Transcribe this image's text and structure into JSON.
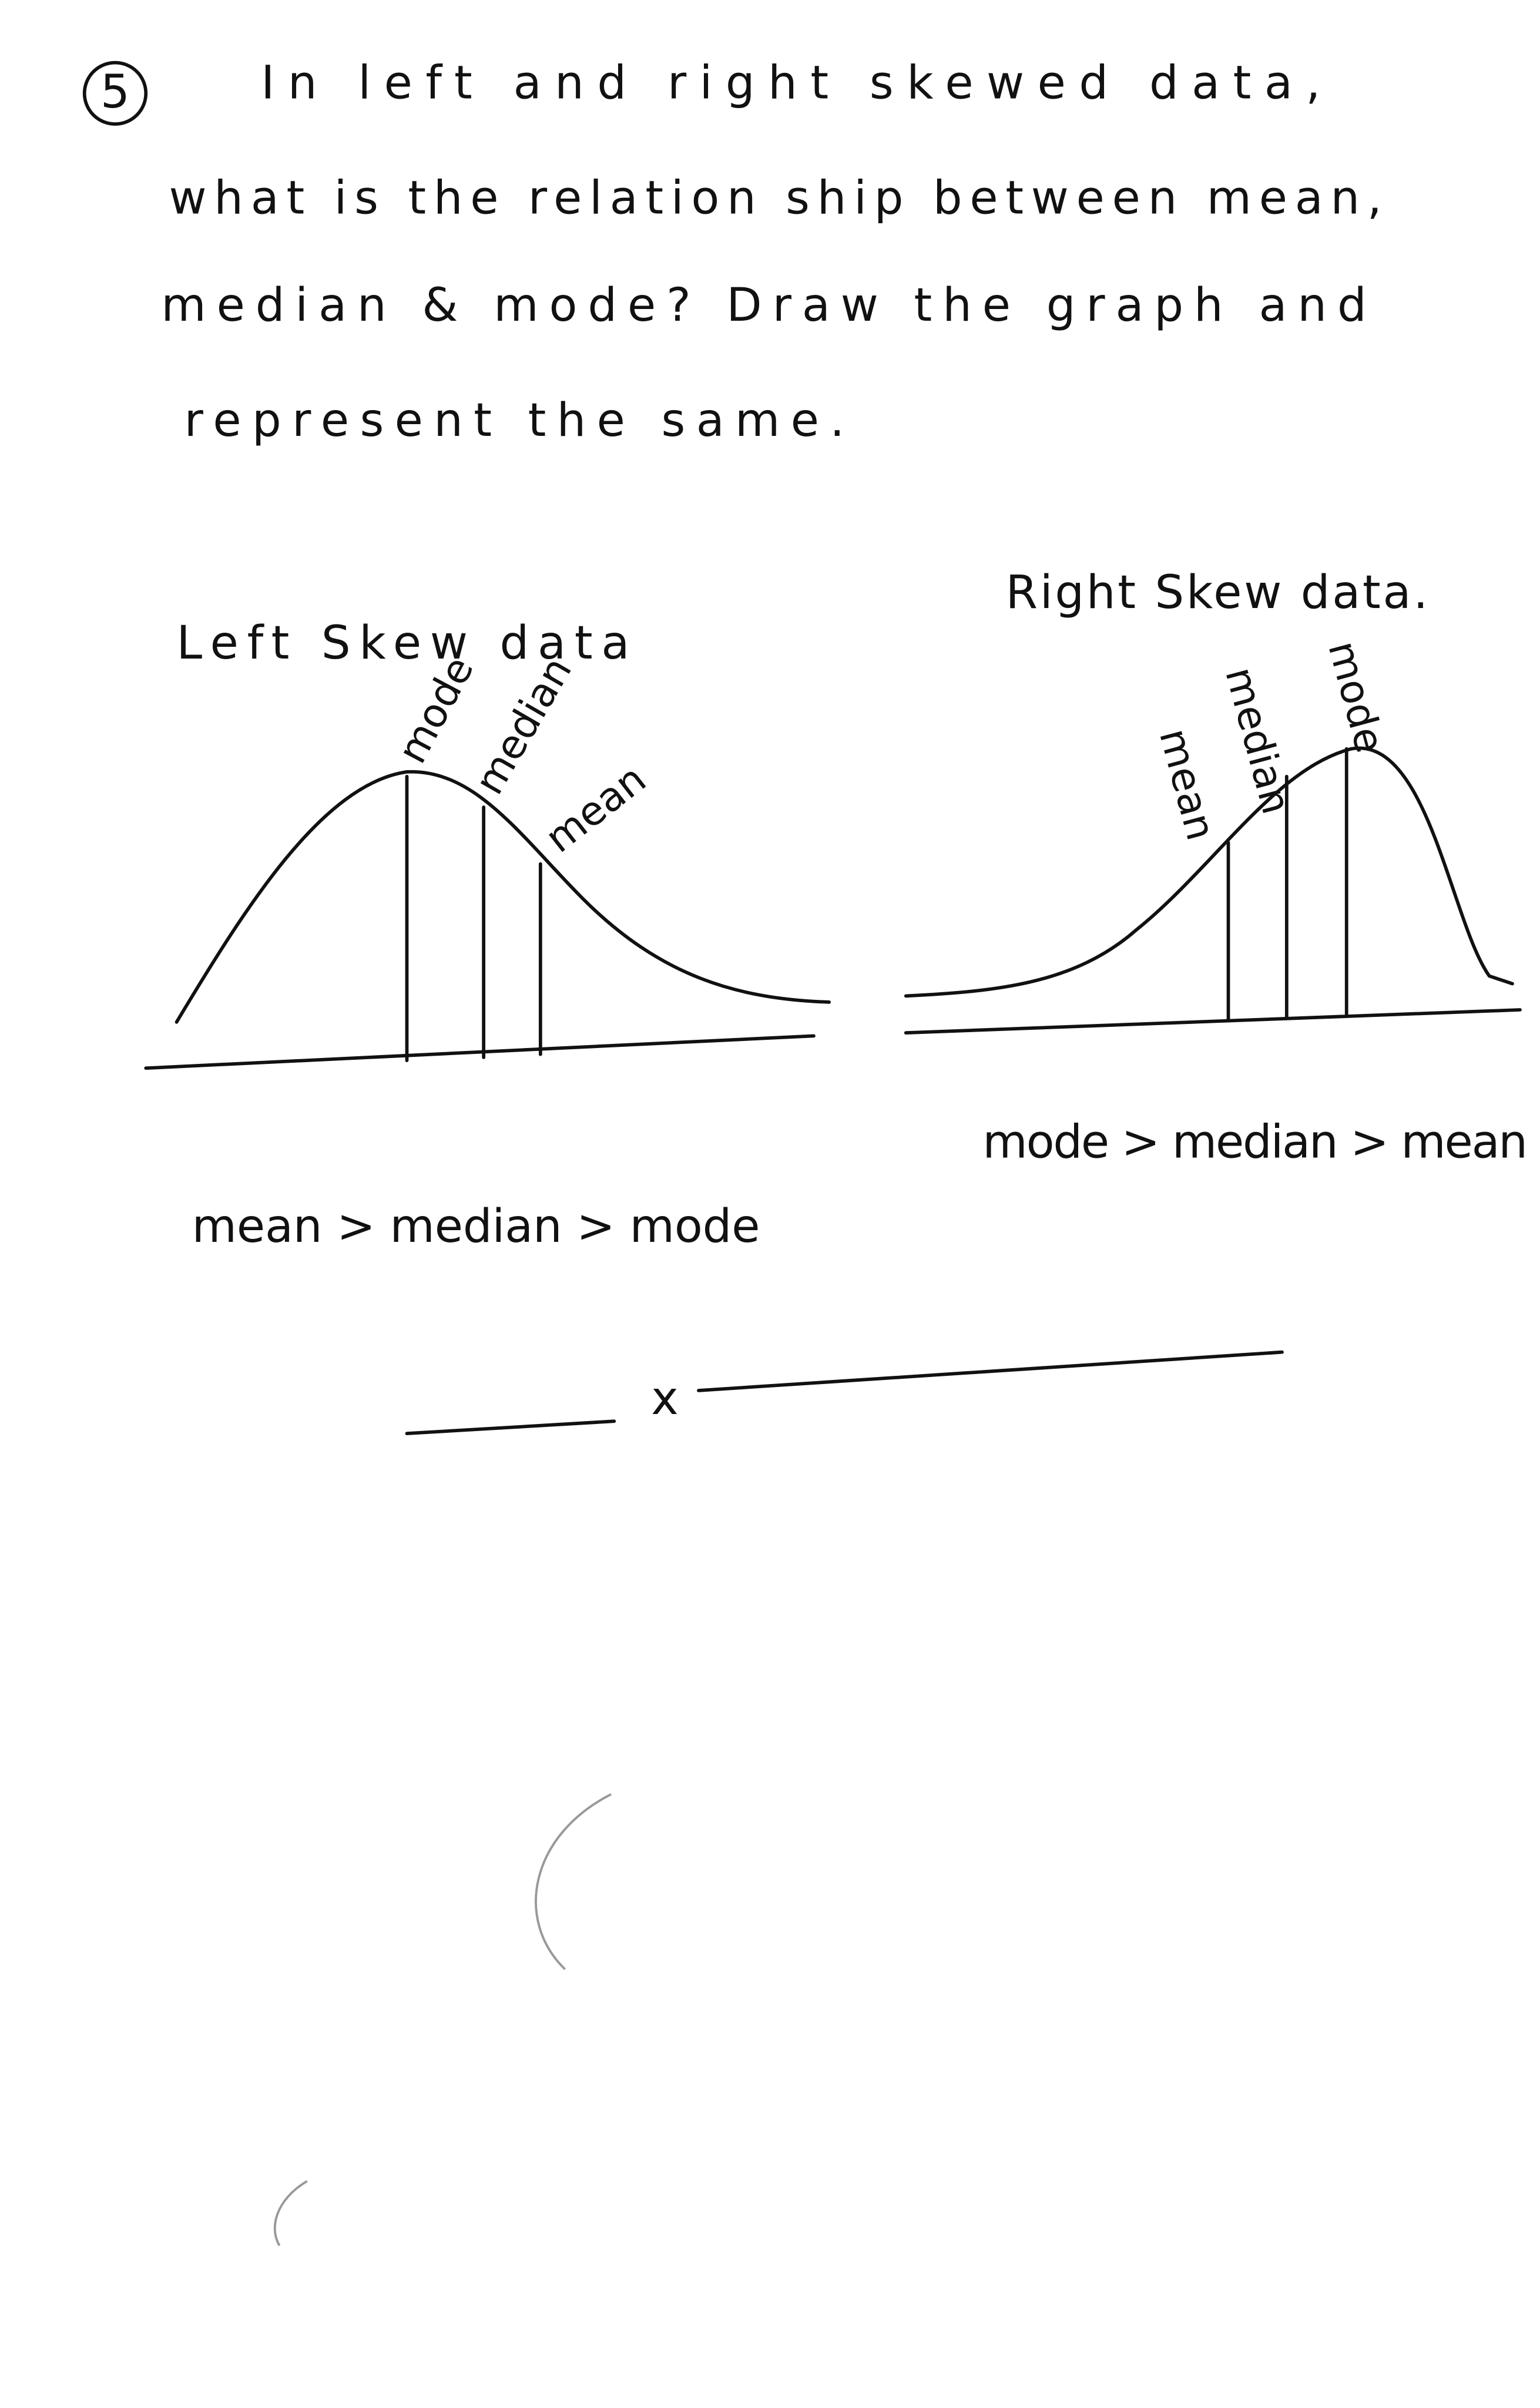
{
  "question": {
    "number": "5",
    "lines": [
      "In left and right skewed data,",
      "what is the relation ship between mean,",
      "median & mode? Draw the graph and",
      "represent the same."
    ]
  },
  "graphs": [
    {
      "title": "Left Skew data",
      "labels": [
        "mode",
        "median",
        "mean"
      ],
      "relation": "mean > median > mode"
    },
    {
      "title": "Right Skew data.",
      "labels": [
        "mean",
        "median",
        "mode"
      ],
      "relation": "mode > median > mean"
    }
  ],
  "end_mark": "x"
}
